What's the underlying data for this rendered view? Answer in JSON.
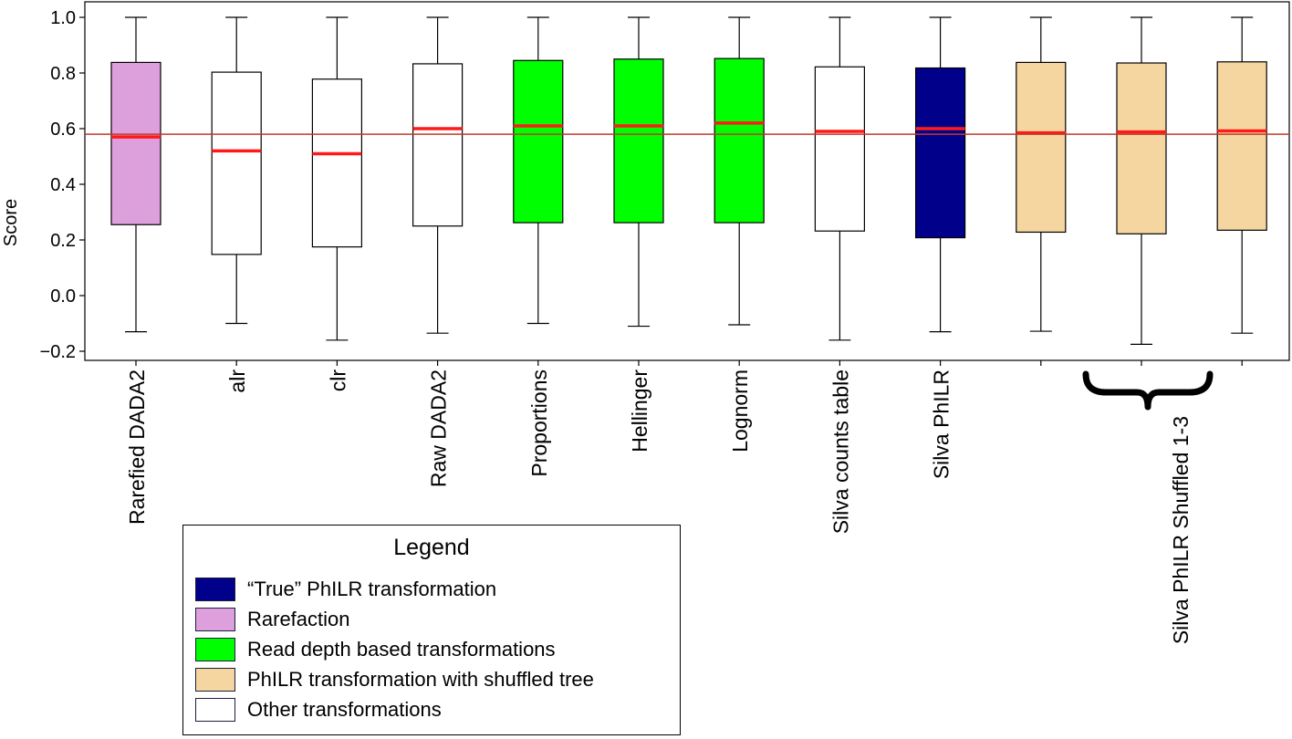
{
  "chart_data": {
    "type": "boxplot",
    "ylabel": "Score",
    "ylim": [
      -0.23,
      1.06
    ],
    "yticks": [
      "1.0",
      "0.8",
      "0.6",
      "0.4",
      "0.2",
      "0.0",
      "−0.2"
    ],
    "ytick_values": [
      1.0,
      0.8,
      0.6,
      0.4,
      0.2,
      0.0,
      -0.2
    ],
    "reference_line": 0.58,
    "reference_line_color": "#c0392b",
    "median_color": "#ff1a1a",
    "categories": [
      "Rarefied DADA2",
      "alr",
      "clr",
      "Raw DADA2",
      "Proportions",
      "Hellinger",
      "Lognorm",
      "Silva counts table",
      "Silva PhILR",
      "",
      "",
      ""
    ],
    "boxes": [
      {
        "min": -0.13,
        "q1": 0.255,
        "median": 0.57,
        "q3": 0.838,
        "max": 1.0,
        "color": "#dda0dd"
      },
      {
        "min": -0.1,
        "q1": 0.148,
        "median": 0.52,
        "q3": 0.803,
        "max": 1.0,
        "color": "#ffffff"
      },
      {
        "min": -0.16,
        "q1": 0.175,
        "median": 0.51,
        "q3": 0.778,
        "max": 1.0,
        "color": "#ffffff"
      },
      {
        "min": -0.135,
        "q1": 0.25,
        "median": 0.6,
        "q3": 0.833,
        "max": 1.0,
        "color": "#ffffff"
      },
      {
        "min": -0.1,
        "q1": 0.262,
        "median": 0.61,
        "q3": 0.845,
        "max": 1.0,
        "color": "#00ff00"
      },
      {
        "min": -0.11,
        "q1": 0.262,
        "median": 0.61,
        "q3": 0.85,
        "max": 1.0,
        "color": "#00ff00"
      },
      {
        "min": -0.105,
        "q1": 0.262,
        "median": 0.62,
        "q3": 0.852,
        "max": 1.0,
        "color": "#00ff00"
      },
      {
        "min": -0.16,
        "q1": 0.232,
        "median": 0.59,
        "q3": 0.822,
        "max": 1.0,
        "color": "#ffffff"
      },
      {
        "min": -0.13,
        "q1": 0.208,
        "median": 0.6,
        "q3": 0.818,
        "max": 1.0,
        "color": "#00008b"
      },
      {
        "min": -0.128,
        "q1": 0.228,
        "median": 0.585,
        "q3": 0.838,
        "max": 1.0,
        "color": "#f5d6a0"
      },
      {
        "min": -0.175,
        "q1": 0.222,
        "median": 0.588,
        "q3": 0.836,
        "max": 1.0,
        "color": "#f5d6a0"
      },
      {
        "min": -0.135,
        "q1": 0.235,
        "median": 0.592,
        "q3": 0.84,
        "max": 1.0,
        "color": "#f5d6a0"
      }
    ],
    "group_label": "Silva PhILR Shuffled 1-3",
    "legend": {
      "title": "Legend",
      "placement": "bottom-left",
      "items": [
        {
          "label": "“True” PhILR transformation",
          "color": "#00008b"
        },
        {
          "label": "Rarefaction",
          "color": "#dda0dd"
        },
        {
          "label": "Read depth based transformations",
          "color": "#00ff00"
        },
        {
          "label": "PhILR transformation with shuffled tree",
          "color": "#f5d6a0"
        },
        {
          "label": "Other transformations",
          "color": "#ffffff"
        }
      ]
    }
  }
}
